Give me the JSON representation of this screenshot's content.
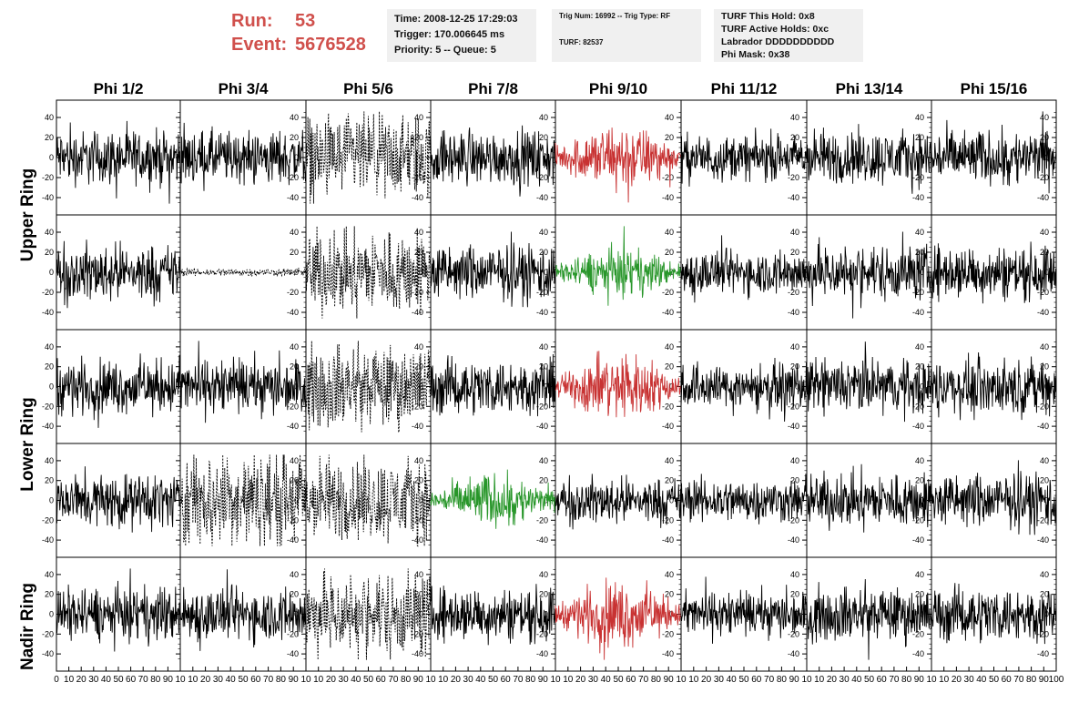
{
  "header": {
    "run_label": "Run:",
    "run_value": "53",
    "event_label": "Event:",
    "event_value": "5676528",
    "time": "Time: 2008-12-25 17:29:03",
    "trigger": "Trigger: 170.006645 ms",
    "priority": "Priority: 5 -- Queue: 5",
    "trig_num": "Trig Num: 16992 -- Trig Type: RF",
    "turf": "TURF: 82537",
    "turf_this_hold": "TURF This Hold: 0x8",
    "turf_active_holds": "TURF Active Holds: 0xc",
    "labrador": "Labrador DDDDDDDDDD",
    "phi_mask": "Phi Mask: 0x38"
  },
  "colors": {
    "header_text": "#d0504c",
    "trace_default": "#000000",
    "trace_red": "#c83232",
    "trace_green": "#28962a",
    "box_bg": "#f0f0f0"
  },
  "chart_data": {
    "type": "line",
    "layout": "grid 5 rows x 8 columns",
    "column_titles": [
      "Phi 1/2",
      "Phi 3/4",
      "Phi 5/6",
      "Phi 7/8",
      "Phi 9/10",
      "Phi 11/12",
      "Phi 13/14",
      "Phi 15/16"
    ],
    "row_groups": [
      "Upper Ring",
      "Lower Ring",
      "Nadir Ring"
    ],
    "xlim": [
      0,
      100
    ],
    "ylim": [
      -50,
      50
    ],
    "y_ticks": [
      -40,
      -20,
      0,
      20,
      40
    ],
    "x_ticks": [
      0,
      10,
      20,
      30,
      40,
      50,
      60,
      70,
      80,
      90,
      100
    ],
    "x_tick_labels_first_panel": [
      "0",
      "10",
      "20",
      "30",
      "40",
      "50",
      "60",
      "70",
      "80",
      "90",
      "10"
    ],
    "x_tick_labels_other_panels": [
      "10",
      "20",
      "30",
      "40",
      "50",
      "60",
      "70",
      "80",
      "90",
      "10"
    ],
    "x_tick_labels_last_panel_end": "100",
    "traces": [
      [
        "normal",
        "normal",
        "dashed",
        "normal",
        "red",
        "normal",
        "normal",
        "normal"
      ],
      [
        "normal",
        "flat_dashed",
        "dashed",
        "normal",
        "green",
        "normal",
        "normal",
        "normal"
      ],
      [
        "normal",
        "normal",
        "dashed",
        "normal",
        "red",
        "normal",
        "normal",
        "normal"
      ],
      [
        "normal",
        "dashed",
        "dashed",
        "green",
        "normal",
        "normal",
        "normal",
        "normal"
      ],
      [
        "normal",
        "normal",
        "dashed",
        "normal",
        "red",
        "normal",
        "normal",
        "normal"
      ]
    ],
    "amplitudes": [
      [
        22,
        22,
        34,
        22,
        28,
        18,
        22,
        22
      ],
      [
        22,
        3,
        34,
        22,
        20,
        18,
        22,
        22
      ],
      [
        22,
        22,
        34,
        22,
        28,
        18,
        22,
        22
      ],
      [
        22,
        40,
        34,
        22,
        18,
        18,
        22,
        22
      ],
      [
        22,
        22,
        34,
        22,
        28,
        18,
        22,
        22
      ]
    ]
  }
}
